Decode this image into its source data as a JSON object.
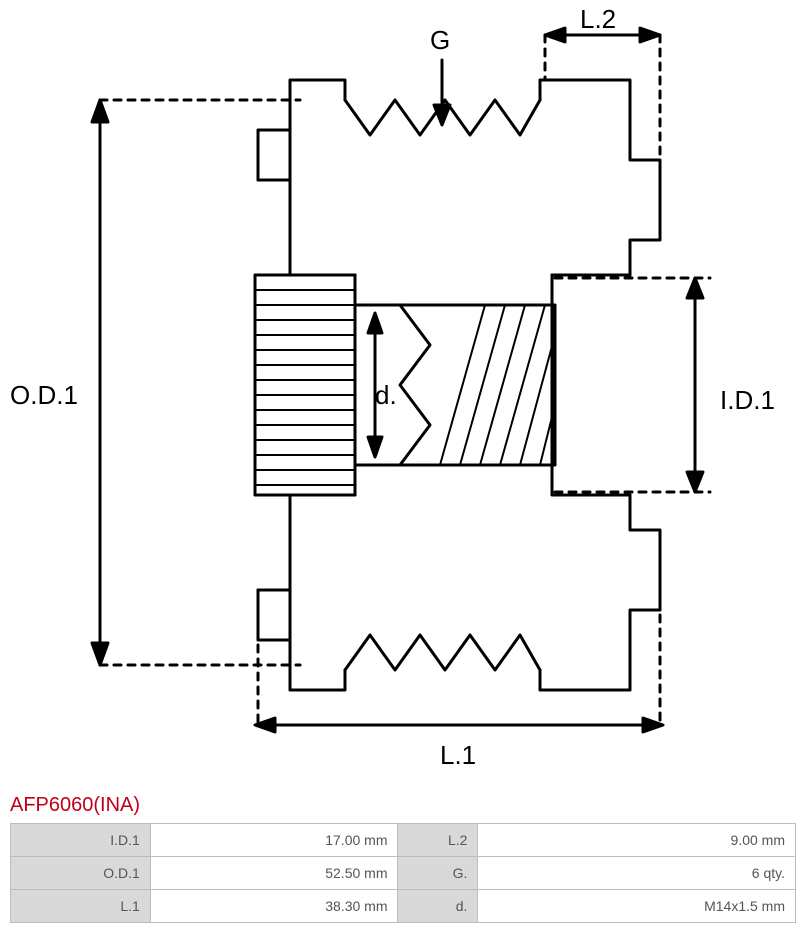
{
  "part_number": "AFP6060(INA)",
  "diagram": {
    "type": "engineering-drawing",
    "stroke_color": "#000000",
    "stroke_width": 3,
    "dash_pattern": "6,6",
    "background": "#ffffff",
    "label_fontsize": 26,
    "labels": {
      "G": "G",
      "L2": "L.2",
      "OD1": "O.D.1",
      "d": "d.",
      "ID1": "I.D.1",
      "L1": "L.1"
    }
  },
  "specs": {
    "rows": [
      {
        "k1": "I.D.1",
        "v1": "17.00 mm",
        "k2": "L.2",
        "v2": "9.00 mm"
      },
      {
        "k1": "O.D.1",
        "v1": "52.50 mm",
        "k2": "G.",
        "v2": "6 qty."
      },
      {
        "k1": "L.1",
        "v1": "38.30 mm",
        "k2": "d.",
        "v2": "M14x1.5 mm"
      }
    ]
  },
  "colors": {
    "title": "#c00018",
    "grid_border": "#bdbdbd",
    "key_bg": "#d9d9d9",
    "text": "#555555"
  }
}
